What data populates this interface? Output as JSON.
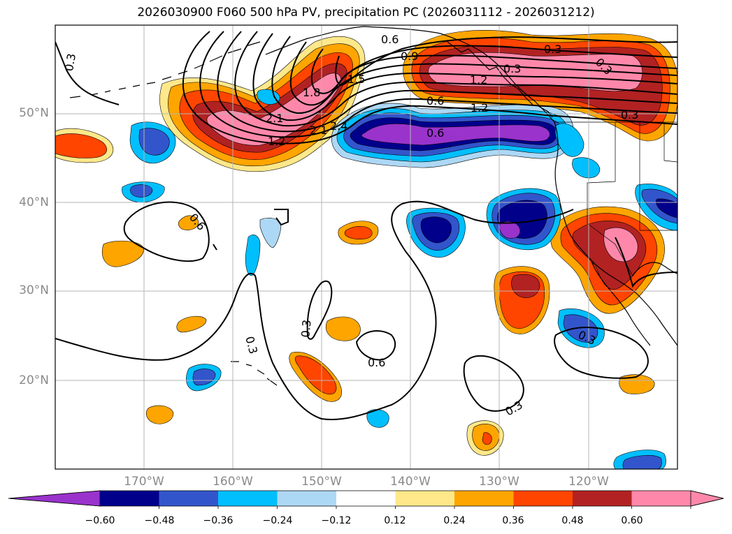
{
  "title": "2026030900 F060 500 hPa PV, precipitation PC (2026031112 - 2026031212)",
  "map": {
    "lon_range": [
      180,
      110
    ],
    "lat_range": [
      10,
      60
    ],
    "lat_labels": [
      "50°N",
      "40°N",
      "30°N",
      "20°N"
    ],
    "lon_labels": [
      "170°W",
      "160°W",
      "150°W",
      "140°W",
      "130°W",
      "120°W"
    ],
    "contour_labels": [
      "0.3",
      "0.6",
      "0.9",
      "1.2",
      "1.5",
      "1.8",
      "2.1",
      "2.1",
      "2.4",
      "1.2",
      "0.6",
      "1.2",
      "0.3",
      "0.3",
      "0.6",
      "0.3",
      "0.3",
      "0.3",
      "0.6",
      "0.3",
      "0.3",
      "0.6",
      "0.3"
    ]
  },
  "colorbar": {
    "ticks": [
      "−0.60",
      "−0.48",
      "−0.36",
      "−0.24",
      "−0.12",
      "0.12",
      "0.24",
      "0.36",
      "0.48",
      "0.60"
    ],
    "colors": [
      "#9933cc",
      "#00008b",
      "#3355cc",
      "#00bfff",
      "#add8f5",
      "#ffffff",
      "#ffe88a",
      "#ffa500",
      "#ff4500",
      "#b22222",
      "#ff88aa",
      "#ff88aa"
    ],
    "extend": "both"
  }
}
